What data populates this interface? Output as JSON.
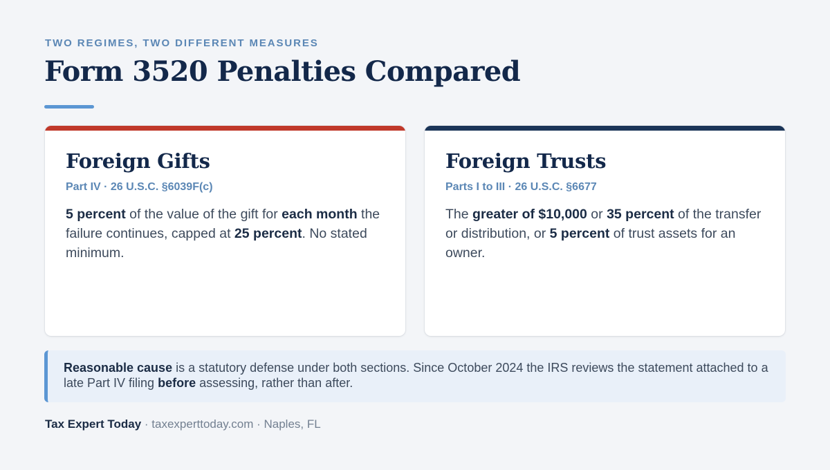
{
  "header": {
    "eyebrow": "TWO REGIMES, TWO DIFFERENT MEASURES",
    "title": "Form 3520 Penalties Compared"
  },
  "colors": {
    "gifts_accent": "#c0392b",
    "trusts_accent": "#1b3558",
    "rule_accent": "#5b96d3",
    "title_color": "#13284a",
    "subtitle_color": "#5b87b5",
    "note_background": "#e9f0f9"
  },
  "cards": {
    "gifts": {
      "title": "Foreign Gifts",
      "subtitle": "Part IV · 26 U.S.C. §6039F(c)",
      "body": [
        {
          "text": "5 percent",
          "bold": true
        },
        {
          "text": " of the value of the gift for ",
          "bold": false
        },
        {
          "text": "each month",
          "bold": true
        },
        {
          "text": " the failure continues, capped at ",
          "bold": false
        },
        {
          "text": "25 percent",
          "bold": true
        },
        {
          "text": ". No stated minimum.",
          "bold": false
        }
      ]
    },
    "trusts": {
      "title": "Foreign Trusts",
      "subtitle": "Parts I to III · 26 U.S.C. §6677",
      "body": [
        {
          "text": "The ",
          "bold": false
        },
        {
          "text": "greater of $10,000",
          "bold": true
        },
        {
          "text": " or ",
          "bold": false
        },
        {
          "text": "35 percent",
          "bold": true
        },
        {
          "text": " of the transfer or distribution, or ",
          "bold": false
        },
        {
          "text": "5 percent",
          "bold": true
        },
        {
          "text": " of trust assets for an owner.",
          "bold": false
        }
      ]
    }
  },
  "note": {
    "body": [
      {
        "text": "Reasonable cause",
        "bold": true
      },
      {
        "text": " is a statutory defense under both sections. Since October 2024 the IRS reviews the statement attached to a late Part IV filing ",
        "bold": false
      },
      {
        "text": "before",
        "bold": true
      },
      {
        "text": " assessing, rather than after.",
        "bold": false
      }
    ]
  },
  "footer": {
    "brand": "Tax Expert Today",
    "separator_1": " · ",
    "site": "taxexperttoday.com",
    "separator_2": " · ",
    "location": "Naples, FL"
  }
}
